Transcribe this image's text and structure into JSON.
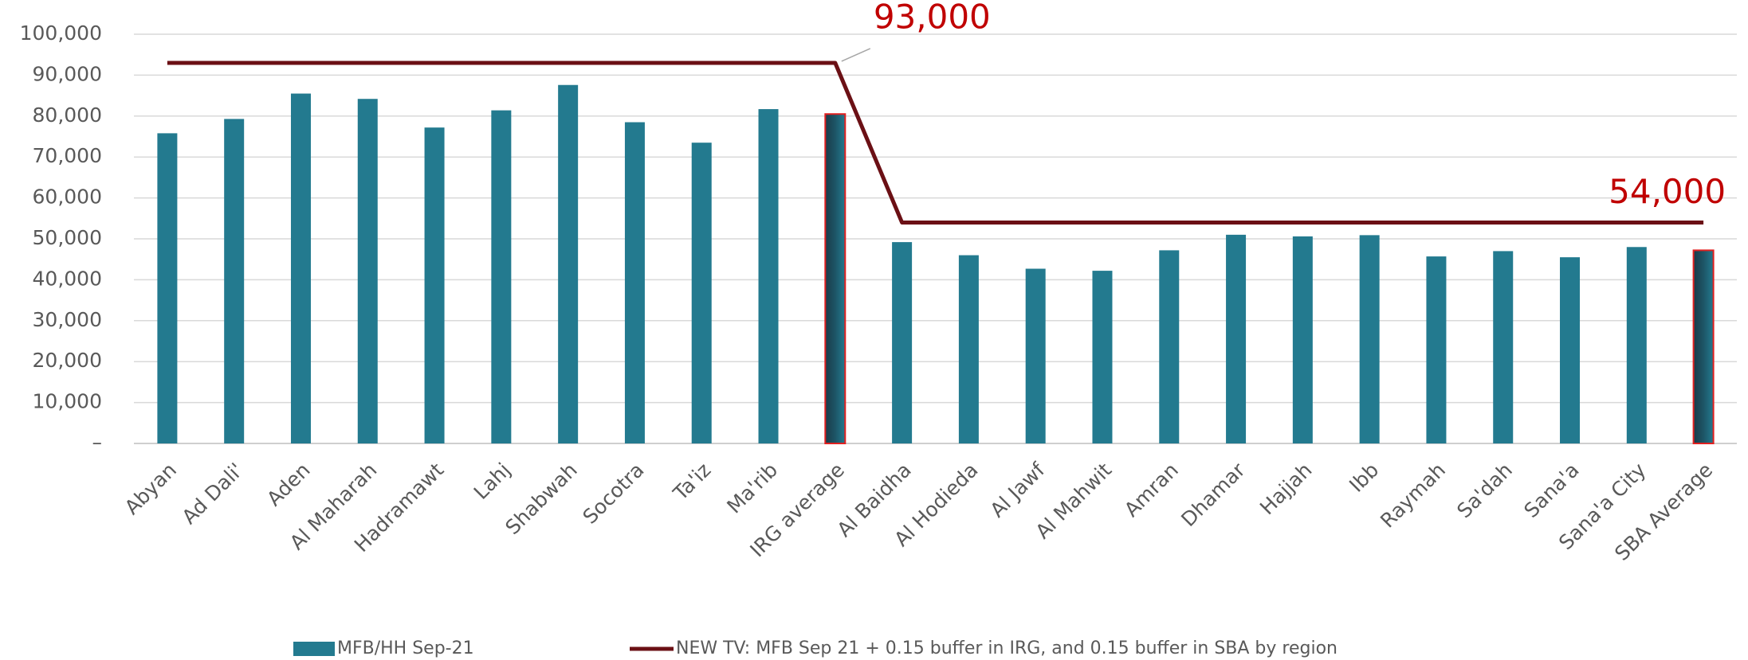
{
  "chart_data": {
    "type": "bar",
    "categories": [
      "Abyan",
      "Ad Dali'",
      "Aden",
      "Al Maharah",
      "Hadramawt",
      "Lahj",
      "Shabwah",
      "Socotra",
      "Ta'iz",
      "Ma'rib",
      "IRG average",
      "Al Baidha",
      "Al Hodieda",
      "Al Jawf",
      "Al Mahwit",
      "Amran",
      "Dhamar",
      "Hajjah",
      "Ibb",
      "Raymah",
      "Sa'dah",
      "Sana'a",
      "Sana'a City",
      "SBA Average"
    ],
    "series": [
      {
        "name": "MFB/HH Sep-21",
        "type": "bar",
        "color": "#237a8f",
        "highlight_indices": [
          10,
          23
        ],
        "highlight_edge": "#e02020",
        "values": [
          75800,
          79300,
          85500,
          84200,
          77200,
          81400,
          87600,
          78500,
          73500,
          81700,
          80500,
          49200,
          46000,
          42700,
          42200,
          47200,
          51000,
          50600,
          50900,
          45700,
          47000,
          45500,
          48000,
          47200
        ]
      },
      {
        "name": "NEW TV: MFB Sep 21 + 0.15 buffer in IRG, and 0.15 buffer in SBA by region",
        "type": "line",
        "color": "#6b1015",
        "values": [
          93000,
          93000,
          93000,
          93000,
          93000,
          93000,
          93000,
          93000,
          93000,
          93000,
          93000,
          54000,
          54000,
          54000,
          54000,
          54000,
          54000,
          54000,
          54000,
          54000,
          54000,
          54000,
          54000,
          54000
        ]
      }
    ],
    "annotations": [
      {
        "text": "93,000",
        "index": 10,
        "value": 93000
      },
      {
        "text": "54,000",
        "index": 23,
        "value": 54000
      }
    ],
    "ylim": [
      0,
      100000
    ],
    "yticks": [
      {
        "value": 0,
        "label": "–"
      },
      {
        "value": 10000,
        "label": "10,000"
      },
      {
        "value": 20000,
        "label": "20,000"
      },
      {
        "value": 30000,
        "label": "30,000"
      },
      {
        "value": 40000,
        "label": "40,000"
      },
      {
        "value": 50000,
        "label": "50,000"
      },
      {
        "value": 60000,
        "label": "60,000"
      },
      {
        "value": 70000,
        "label": "70,000"
      },
      {
        "value": 80000,
        "label": "80,000"
      },
      {
        "value": 90000,
        "label": "90,000"
      },
      {
        "value": 100000,
        "label": "100,000"
      }
    ],
    "grid": true,
    "legend": "bottom"
  }
}
